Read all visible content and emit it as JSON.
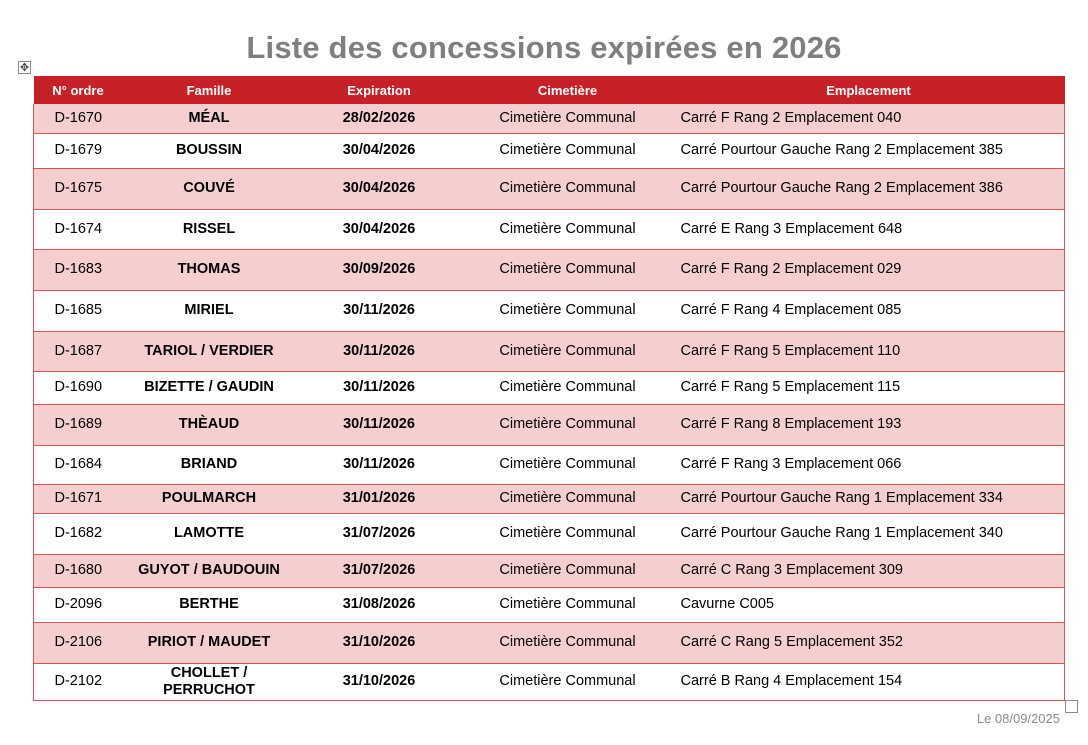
{
  "title": "Liste des concessions expirées en 2026",
  "headers": {
    "numero": "N° ordre",
    "famille": "Famille",
    "expiration": "Expiration",
    "cimetiere": "Cimetière",
    "emplacement": "Emplacement"
  },
  "rows": [
    {
      "numero": "D-1670",
      "famille": "MÉAL",
      "expiration": "28/02/2026",
      "cimetiere": "Cimetière Communal",
      "emplacement": "Carré F Rang 2 Emplacement 040"
    },
    {
      "numero": "D-1679",
      "famille": "BOUSSIN",
      "expiration": "30/04/2026",
      "cimetiere": "Cimetière Communal",
      "emplacement": "Carré Pourtour Gauche Rang 2 Emplacement 385"
    },
    {
      "numero": "D-1675",
      "famille": "COUVÉ",
      "expiration": "30/04/2026",
      "cimetiere": "Cimetière Communal",
      "emplacement": "Carré Pourtour Gauche Rang 2 Emplacement 386"
    },
    {
      "numero": "D-1674",
      "famille": "RISSEL",
      "expiration": "30/04/2026",
      "cimetiere": "Cimetière Communal",
      "emplacement": "Carré E Rang 3 Emplacement 648"
    },
    {
      "numero": "D-1683",
      "famille": "THOMAS",
      "expiration": "30/09/2026",
      "cimetiere": "Cimetière Communal",
      "emplacement": "Carré F Rang 2 Emplacement 029"
    },
    {
      "numero": "D-1685",
      "famille": "MIRIEL",
      "expiration": "30/11/2026",
      "cimetiere": "Cimetière Communal",
      "emplacement": "Carré F Rang 4 Emplacement 085"
    },
    {
      "numero": "D-1687",
      "famille": "TARIOL / VERDIER",
      "expiration": "30/11/2026",
      "cimetiere": "Cimetière Communal",
      "emplacement": "Carré F Rang 5 Emplacement 110"
    },
    {
      "numero": "D-1690",
      "famille": "BIZETTE / GAUDIN",
      "expiration": "30/11/2026",
      "cimetiere": "Cimetière Communal",
      "emplacement": "Carré F Rang 5 Emplacement 115"
    },
    {
      "numero": "D-1689",
      "famille": "THÈAUD",
      "expiration": "30/11/2026",
      "cimetiere": "Cimetière Communal",
      "emplacement": "Carré F Rang 8 Emplacement 193"
    },
    {
      "numero": "D-1684",
      "famille": "BRIAND",
      "expiration": "30/11/2026",
      "cimetiere": "Cimetière Communal",
      "emplacement": "Carré F Rang 3 Emplacement 066"
    },
    {
      "numero": "D-1671",
      "famille": "POULMARCH",
      "expiration": "31/01/2026",
      "cimetiere": "Cimetière Communal",
      "emplacement": "Carré Pourtour Gauche Rang 1 Emplacement 334"
    },
    {
      "numero": "D-1682",
      "famille": "LAMOTTE",
      "expiration": "31/07/2026",
      "cimetiere": "Cimetière Communal",
      "emplacement": "Carré Pourtour Gauche Rang 1 Emplacement 340"
    },
    {
      "numero": "D-1680",
      "famille": "GUYOT / BAUDOUIN",
      "expiration": "31/07/2026",
      "cimetiere": "Cimetière Communal",
      "emplacement": "Carré C Rang 3 Emplacement 309"
    },
    {
      "numero": "D-2096",
      "famille": "BERTHE",
      "expiration": "31/08/2026",
      "cimetiere": "Cimetière Communal",
      "emplacement": "Cavurne C005"
    },
    {
      "numero": "D-2106",
      "famille": "PIRIOT / MAUDET",
      "expiration": "31/10/2026",
      "cimetiere": "Cimetière Communal",
      "emplacement": "Carré C Rang 5 Emplacement 352"
    },
    {
      "numero": "D-2102",
      "famille": "CHOLLET / PERRUCHOT",
      "expiration": "31/10/2026",
      "cimetiere": "Cimetière Communal",
      "emplacement": "Carré B Rang 4 Emplacement 154"
    }
  ],
  "footer_date": "Le 08/09/2025",
  "colors": {
    "header_bg": "#c62127",
    "row_alt_bg": "#f5cfd0",
    "title": "#7f7f7f"
  },
  "icons": {
    "table_handle": "move-icon",
    "resize_handle": "resize-handle-icon"
  }
}
